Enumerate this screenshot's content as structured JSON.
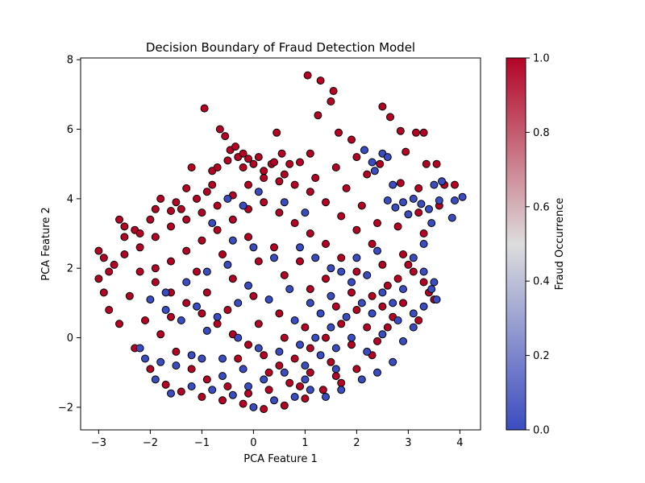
{
  "chart_data": {
    "type": "scatter",
    "title": "Decision Boundary of Fraud Detection Model",
    "xlabel": "PCA Feature 1",
    "ylabel": "PCA Feature 2",
    "xlim": [
      -3.35,
      4.4
    ],
    "ylim": [
      -2.65,
      8.05
    ],
    "xticks": [
      -3,
      -2,
      -1,
      0,
      1,
      2,
      3,
      4
    ],
    "yticks": [
      -2,
      0,
      2,
      4,
      6,
      8
    ],
    "grid": false,
    "colormap": "coolwarm",
    "marker_edge_color": "#000000",
    "colorbar": {
      "label": "Fraud Occurrence",
      "range": [
        0.0,
        1.0
      ],
      "ticks": [
        "0.0",
        "0.2",
        "0.4",
        "0.6",
        "0.8",
        "1.0"
      ],
      "low_color": "#3b4cc0",
      "mid_color": "#dddddd",
      "high_color": "#b40426"
    },
    "series": [
      {
        "name": "",
        "class_value": 1,
        "color": "#b40426",
        "points": [
          [
            -3.0,
            2.5
          ],
          [
            -2.9,
            2.3
          ],
          [
            -2.8,
            1.9
          ],
          [
            -2.6,
            3.4
          ],
          [
            -2.5,
            3.2
          ],
          [
            -2.3,
            3.1
          ],
          [
            -2.2,
            3.0
          ],
          [
            -1.6,
            3.65
          ],
          [
            -1.9,
            3.7
          ],
          [
            -1.8,
            4.0
          ],
          [
            -1.5,
            3.9
          ],
          [
            -1.3,
            4.3
          ],
          [
            -1.2,
            4.9
          ],
          [
            -0.95,
            6.6
          ],
          [
            -0.9,
            4.2
          ],
          [
            -0.8,
            4.8
          ],
          [
            -0.7,
            4.9
          ],
          [
            -0.65,
            6.0
          ],
          [
            -0.55,
            5.8
          ],
          [
            -0.5,
            5.1
          ],
          [
            -0.45,
            5.4
          ],
          [
            -0.35,
            5.5
          ],
          [
            -0.3,
            5.2
          ],
          [
            -0.2,
            5.3
          ],
          [
            -0.1,
            5.15
          ],
          [
            0.0,
            5.0
          ],
          [
            0.1,
            5.2
          ],
          [
            0.2,
            4.8
          ],
          [
            0.35,
            5.0
          ],
          [
            0.45,
            5.9
          ],
          [
            0.55,
            5.3
          ],
          [
            0.7,
            5.0
          ],
          [
            0.9,
            5.05
          ],
          [
            1.1,
            5.3
          ],
          [
            1.05,
            7.55
          ],
          [
            1.3,
            7.4
          ],
          [
            1.25,
            6.4
          ],
          [
            1.5,
            6.8
          ],
          [
            1.55,
            7.1
          ],
          [
            1.65,
            5.9
          ],
          [
            1.9,
            5.7
          ],
          [
            2.0,
            5.2
          ],
          [
            2.2,
            4.7
          ],
          [
            2.45,
            5.0
          ],
          [
            2.5,
            6.65
          ],
          [
            2.65,
            6.35
          ],
          [
            2.85,
            4.45
          ],
          [
            2.85,
            5.95
          ],
          [
            2.95,
            5.35
          ],
          [
            3.15,
            5.9
          ],
          [
            3.2,
            4.3
          ],
          [
            3.3,
            5.9
          ],
          [
            3.35,
            5.0
          ],
          [
            3.55,
            5.0
          ],
          [
            3.7,
            4.4
          ],
          [
            3.9,
            4.4
          ],
          [
            3.6,
            3.8
          ],
          [
            3.3,
            3.0
          ],
          [
            3.2,
            3.6
          ],
          [
            2.8,
            3.2
          ],
          [
            2.9,
            2.4
          ],
          [
            3.0,
            2.1
          ],
          [
            3.1,
            1.9
          ],
          [
            3.3,
            1.6
          ],
          [
            3.4,
            1.3
          ],
          [
            2.9,
            1.0
          ],
          [
            2.6,
            0.3
          ],
          [
            2.7,
            0.6
          ],
          [
            2.3,
            -0.5
          ],
          [
            2.0,
            -0.9
          ],
          [
            1.7,
            -1.3
          ],
          [
            1.35,
            -1.5
          ],
          [
            1.0,
            -1.75
          ],
          [
            0.6,
            -1.95
          ],
          [
            0.2,
            -2.05
          ],
          [
            -0.2,
            -1.9
          ],
          [
            -0.6,
            -1.8
          ],
          [
            -1.0,
            -1.7
          ],
          [
            -1.4,
            -1.55
          ],
          [
            -1.7,
            -1.35
          ],
          [
            -2.0,
            -0.9
          ],
          [
            -2.3,
            -0.3
          ],
          [
            -2.6,
            0.4
          ],
          [
            -2.9,
            1.3
          ],
          [
            -3.0,
            1.7
          ],
          [
            -2.7,
            2.1
          ],
          [
            -2.4,
            1.2
          ],
          [
            -2.1,
            0.5
          ],
          [
            -1.8,
            0.1
          ],
          [
            -1.5,
            -0.4
          ],
          [
            -1.2,
            -0.9
          ],
          [
            -0.9,
            -1.2
          ],
          [
            -0.5,
            -1.4
          ],
          [
            -0.1,
            -1.6
          ],
          [
            0.3,
            -1.5
          ],
          [
            0.7,
            -1.3
          ],
          [
            1.1,
            -1.0
          ],
          [
            1.5,
            -0.7
          ],
          [
            1.9,
            -0.2
          ],
          [
            2.2,
            0.3
          ],
          [
            2.5,
            0.9
          ],
          [
            2.6,
            1.5
          ],
          [
            2.5,
            2.1
          ],
          [
            2.3,
            2.7
          ],
          [
            2.0,
            3.1
          ],
          [
            1.7,
            3.5
          ],
          [
            1.4,
            3.9
          ],
          [
            1.1,
            4.2
          ],
          [
            0.8,
            4.4
          ],
          [
            0.5,
            4.5
          ],
          [
            0.2,
            4.6
          ],
          [
            -0.1,
            4.4
          ],
          [
            -0.4,
            4.1
          ],
          [
            -0.7,
            3.8
          ],
          [
            -1.0,
            3.6
          ],
          [
            -1.3,
            3.4
          ],
          [
            -1.6,
            3.2
          ],
          [
            -1.9,
            2.9
          ],
          [
            -2.2,
            2.6
          ],
          [
            -2.5,
            2.4
          ],
          [
            -2.2,
            1.9
          ],
          [
            -1.9,
            1.6
          ],
          [
            -1.6,
            1.3
          ],
          [
            -1.3,
            1.0
          ],
          [
            -1.0,
            0.7
          ],
          [
            -0.7,
            0.4
          ],
          [
            -0.4,
            0.1
          ],
          [
            -0.1,
            -0.2
          ],
          [
            0.2,
            -0.5
          ],
          [
            0.5,
            -0.8
          ],
          [
            0.8,
            -0.6
          ],
          [
            1.1,
            -0.3
          ],
          [
            1.4,
            0.0
          ],
          [
            1.7,
            0.4
          ],
          [
            2.0,
            0.8
          ],
          [
            2.3,
            1.2
          ],
          [
            2.0,
            1.9
          ],
          [
            1.7,
            2.3
          ],
          [
            1.4,
            2.7
          ],
          [
            1.1,
            3.0
          ],
          [
            0.8,
            3.3
          ],
          [
            0.5,
            3.6
          ],
          [
            0.2,
            3.9
          ],
          [
            -0.1,
            3.7
          ],
          [
            -0.4,
            3.4
          ],
          [
            -0.7,
            3.1
          ],
          [
            -1.0,
            2.8
          ],
          [
            -1.3,
            2.5
          ],
          [
            -1.6,
            2.2
          ],
          [
            -1.9,
            2.0
          ],
          [
            -1.6,
            0.6
          ],
          [
            -1.1,
            1.9
          ],
          [
            -0.6,
            2.4
          ],
          [
            -0.1,
            2.9
          ],
          [
            0.4,
            2.6
          ],
          [
            0.9,
            2.2
          ],
          [
            1.4,
            1.7
          ],
          [
            1.9,
            1.3
          ],
          [
            1.6,
            0.9
          ],
          [
            1.1,
            1.4
          ],
          [
            0.6,
            1.8
          ],
          [
            0.1,
            2.2
          ],
          [
            -0.4,
            1.7
          ],
          [
            -0.9,
            1.3
          ],
          [
            -0.5,
            0.8
          ],
          [
            0.0,
            1.2
          ],
          [
            0.5,
            0.7
          ],
          [
            1.0,
            0.3
          ],
          [
            0.6,
            0.0
          ],
          [
            0.1,
            0.4
          ],
          [
            -0.3,
            -0.6
          ],
          [
            0.3,
            -1.0
          ],
          [
            0.9,
            -1.4
          ],
          [
            1.6,
            -1.1
          ],
          [
            2.4,
            -0.1
          ],
          [
            2.8,
            1.7
          ],
          [
            3.5,
            1.1
          ],
          [
            3.2,
            0.5
          ],
          [
            -2.8,
            0.8
          ],
          [
            -2.5,
            2.9
          ],
          [
            -2.0,
            3.4
          ],
          [
            -1.4,
            3.7
          ],
          [
            -0.8,
            4.4
          ],
          [
            0.6,
            4.7
          ],
          [
            1.2,
            4.6
          ],
          [
            1.8,
            4.3
          ],
          [
            2.1,
            3.8
          ],
          [
            2.4,
            3.3
          ],
          [
            -0.2,
            4.9
          ],
          [
            0.4,
            5.05
          ],
          [
            -1.1,
            4.0
          ],
          [
            1.6,
            4.9
          ]
        ]
      },
      {
        "name": "",
        "class_value": 0,
        "color": "#3b4cc0",
        "points": [
          [
            2.15,
            5.4
          ],
          [
            2.3,
            5.05
          ],
          [
            2.5,
            5.3
          ],
          [
            2.6,
            5.2
          ],
          [
            2.35,
            4.8
          ],
          [
            2.7,
            4.4
          ],
          [
            2.6,
            3.95
          ],
          [
            2.75,
            3.75
          ],
          [
            2.9,
            3.9
          ],
          [
            3.1,
            4.0
          ],
          [
            3.0,
            3.55
          ],
          [
            3.25,
            3.85
          ],
          [
            3.4,
            3.7
          ],
          [
            3.45,
            3.3
          ],
          [
            3.5,
            4.4
          ],
          [
            3.65,
            4.5
          ],
          [
            3.9,
            3.95
          ],
          [
            4.05,
            4.05
          ],
          [
            3.85,
            3.45
          ],
          [
            3.6,
            3.95
          ],
          [
            3.3,
            2.7
          ],
          [
            3.1,
            2.3
          ],
          [
            3.3,
            1.9
          ],
          [
            3.45,
            1.4
          ],
          [
            3.5,
            1.6
          ],
          [
            3.55,
            1.1
          ],
          [
            3.3,
            0.9
          ],
          [
            3.1,
            0.7
          ],
          [
            3.1,
            0.3
          ],
          [
            2.9,
            -0.1
          ],
          [
            2.8,
            0.5
          ],
          [
            2.7,
            -0.7
          ],
          [
            2.4,
            -1.0
          ],
          [
            2.1,
            -1.2
          ],
          [
            1.7,
            -1.5
          ],
          [
            1.4,
            -1.7
          ],
          [
            1.1,
            -1.5
          ],
          [
            0.8,
            -1.7
          ],
          [
            0.4,
            -1.8
          ],
          [
            0.0,
            -2.0
          ],
          [
            -0.4,
            -1.65
          ],
          [
            -0.8,
            -1.5
          ],
          [
            -1.2,
            -1.4
          ],
          [
            -1.6,
            -1.6
          ],
          [
            -1.9,
            -1.2
          ],
          [
            -2.1,
            -0.6
          ],
          [
            -2.2,
            -0.3
          ],
          [
            -1.8,
            -0.7
          ],
          [
            -1.5,
            -0.8
          ],
          [
            -1.2,
            -0.5
          ],
          [
            -0.9,
            0.2
          ],
          [
            -1.0,
            -0.6
          ],
          [
            -0.6,
            -0.6
          ],
          [
            -0.2,
            -0.9
          ],
          [
            0.2,
            -1.2
          ],
          [
            0.6,
            -1.0
          ],
          [
            1.0,
            -0.8
          ],
          [
            1.3,
            -0.5
          ],
          [
            1.6,
            -0.3
          ],
          [
            1.9,
            0.0
          ],
          [
            2.2,
            -0.4
          ],
          [
            2.5,
            0.1
          ],
          [
            2.3,
            0.7
          ],
          [
            2.1,
            1.0
          ],
          [
            1.8,
            0.6
          ],
          [
            1.5,
            0.3
          ],
          [
            1.2,
            0.0
          ],
          [
            0.9,
            -0.2
          ],
          [
            0.5,
            -0.4
          ],
          [
            0.1,
            -0.3
          ],
          [
            -0.3,
            0.0
          ],
          [
            -0.7,
            0.6
          ],
          [
            -1.1,
            0.9
          ],
          [
            -1.4,
            0.5
          ],
          [
            -1.7,
            0.8
          ],
          [
            -2.0,
            1.1
          ],
          [
            -1.7,
            1.3
          ],
          [
            -1.3,
            1.6
          ],
          [
            -0.9,
            1.9
          ],
          [
            -0.5,
            2.1
          ],
          [
            -0.1,
            1.5
          ],
          [
            0.3,
            1.1
          ],
          [
            0.7,
            1.4
          ],
          [
            1.1,
            1.0
          ],
          [
            1.5,
            1.2
          ],
          [
            1.9,
            1.6
          ],
          [
            2.2,
            1.8
          ],
          [
            2.5,
            1.3
          ],
          [
            2.7,
            1.0
          ],
          [
            2.9,
            1.4
          ],
          [
            0.9,
            2.6
          ],
          [
            1.2,
            2.3
          ],
          [
            1.5,
            2.0
          ],
          [
            0.4,
            2.3
          ],
          [
            0.0,
            2.6
          ],
          [
            -0.4,
            2.8
          ],
          [
            -0.2,
            3.8
          ],
          [
            -0.5,
            4.0
          ],
          [
            0.1,
            4.2
          ],
          [
            0.6,
            3.9
          ],
          [
            1.0,
            3.6
          ],
          [
            -0.8,
            3.3
          ],
          [
            -0.3,
            1.0
          ],
          [
            0.8,
            0.5
          ],
          [
            1.3,
            0.7
          ],
          [
            1.7,
            1.9
          ],
          [
            2.0,
            2.3
          ],
          [
            2.4,
            2.5
          ],
          [
            1.6,
            -0.9
          ],
          [
            1.0,
            -1.2
          ],
          [
            -0.1,
            -1.4
          ],
          [
            -0.6,
            -1.1
          ]
        ]
      }
    ]
  }
}
